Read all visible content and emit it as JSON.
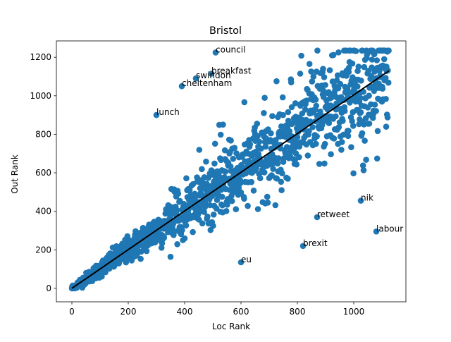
{
  "chart_data": {
    "type": "scatter",
    "title": "Bristol",
    "xlabel": "Loc Rank",
    "ylabel": "Out Rank",
    "xlim": [
      -55,
      1185
    ],
    "ylim": [
      -70,
      1285
    ],
    "xticks": [
      0,
      200,
      400,
      600,
      800,
      1000
    ],
    "yticks": [
      0,
      200,
      400,
      600,
      800,
      1000,
      1200
    ],
    "grid": false,
    "colors": {
      "points": "#1f77b4",
      "fit_line": "#000000"
    },
    "fit_line": {
      "x": [
        0,
        1125
      ],
      "y": [
        0,
        1130
      ]
    },
    "annotated_points": [
      {
        "label": "council",
        "x": 510,
        "y": 1225
      },
      {
        "label": "breakfast",
        "x": 495,
        "y": 1115
      },
      {
        "label": "swindon",
        "x": 440,
        "y": 1090
      },
      {
        "label": "cheltenham",
        "x": 390,
        "y": 1050
      },
      {
        "label": "lunch",
        "x": 300,
        "y": 900
      },
      {
        "label": "nik",
        "x": 1025,
        "y": 455
      },
      {
        "label": "retweet",
        "x": 870,
        "y": 370
      },
      {
        "label": "labour",
        "x": 1080,
        "y": 295
      },
      {
        "label": "brexit",
        "x": 820,
        "y": 220
      },
      {
        "label": "eu",
        "x": 600,
        "y": 135
      }
    ],
    "points_note": "approx. 1125 unlabeled points scattered around the fit line; rendered procedurally"
  }
}
